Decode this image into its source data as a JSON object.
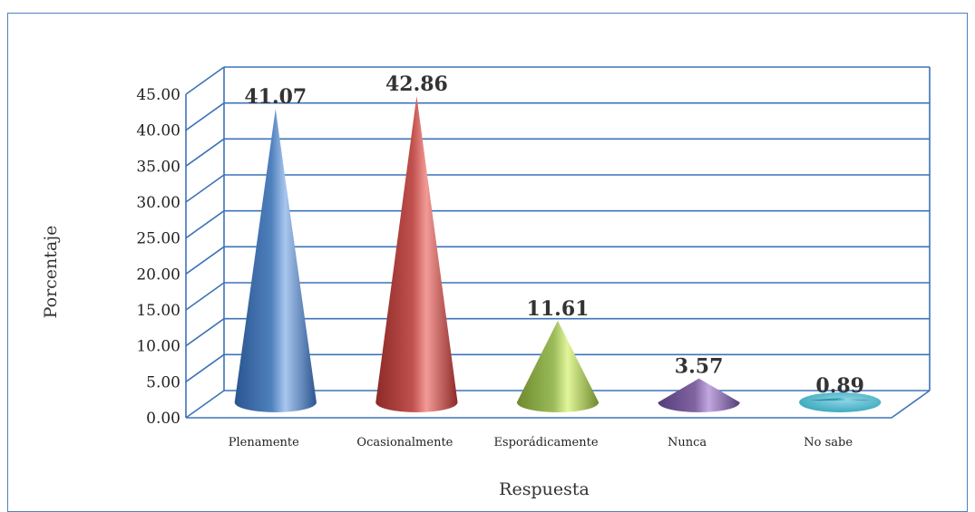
{
  "chart_data": {
    "type": "bar",
    "style": "3d-cone",
    "categories": [
      "Plenamente",
      "Ocasionalmente",
      "Esporádicamente",
      "Nunca",
      "No sabe"
    ],
    "values": [
      41.07,
      42.86,
      11.61,
      3.57,
      0.89
    ],
    "data_labels": [
      "41.07",
      "42.86",
      "11.61",
      "3.57",
      "0.89"
    ],
    "xlabel": "Respuesta",
    "ylabel": "Porcentaje",
    "ylim": [
      0,
      45
    ],
    "yticks": [
      "0.00",
      "5.00",
      "10.00",
      "15.00",
      "20.00",
      "25.00",
      "30.00",
      "35.00",
      "40.00",
      "45.00"
    ],
    "grid": true,
    "legend": "none",
    "colors": {
      "frame": "#4f81bd",
      "grid": "#3c73b8",
      "series": [
        "#4f81bd",
        "#c0504d",
        "#9bbb59",
        "#8064a2",
        "#31a2b8"
      ],
      "series_light": [
        "#a9c6ee",
        "#f29a96",
        "#e2f59a",
        "#c2a8e0",
        "#8fd6e6"
      ],
      "series_dark": [
        "#2a5590",
        "#8c2a27",
        "#6d8a2d",
        "#553d78",
        "#1c6f80"
      ]
    }
  }
}
